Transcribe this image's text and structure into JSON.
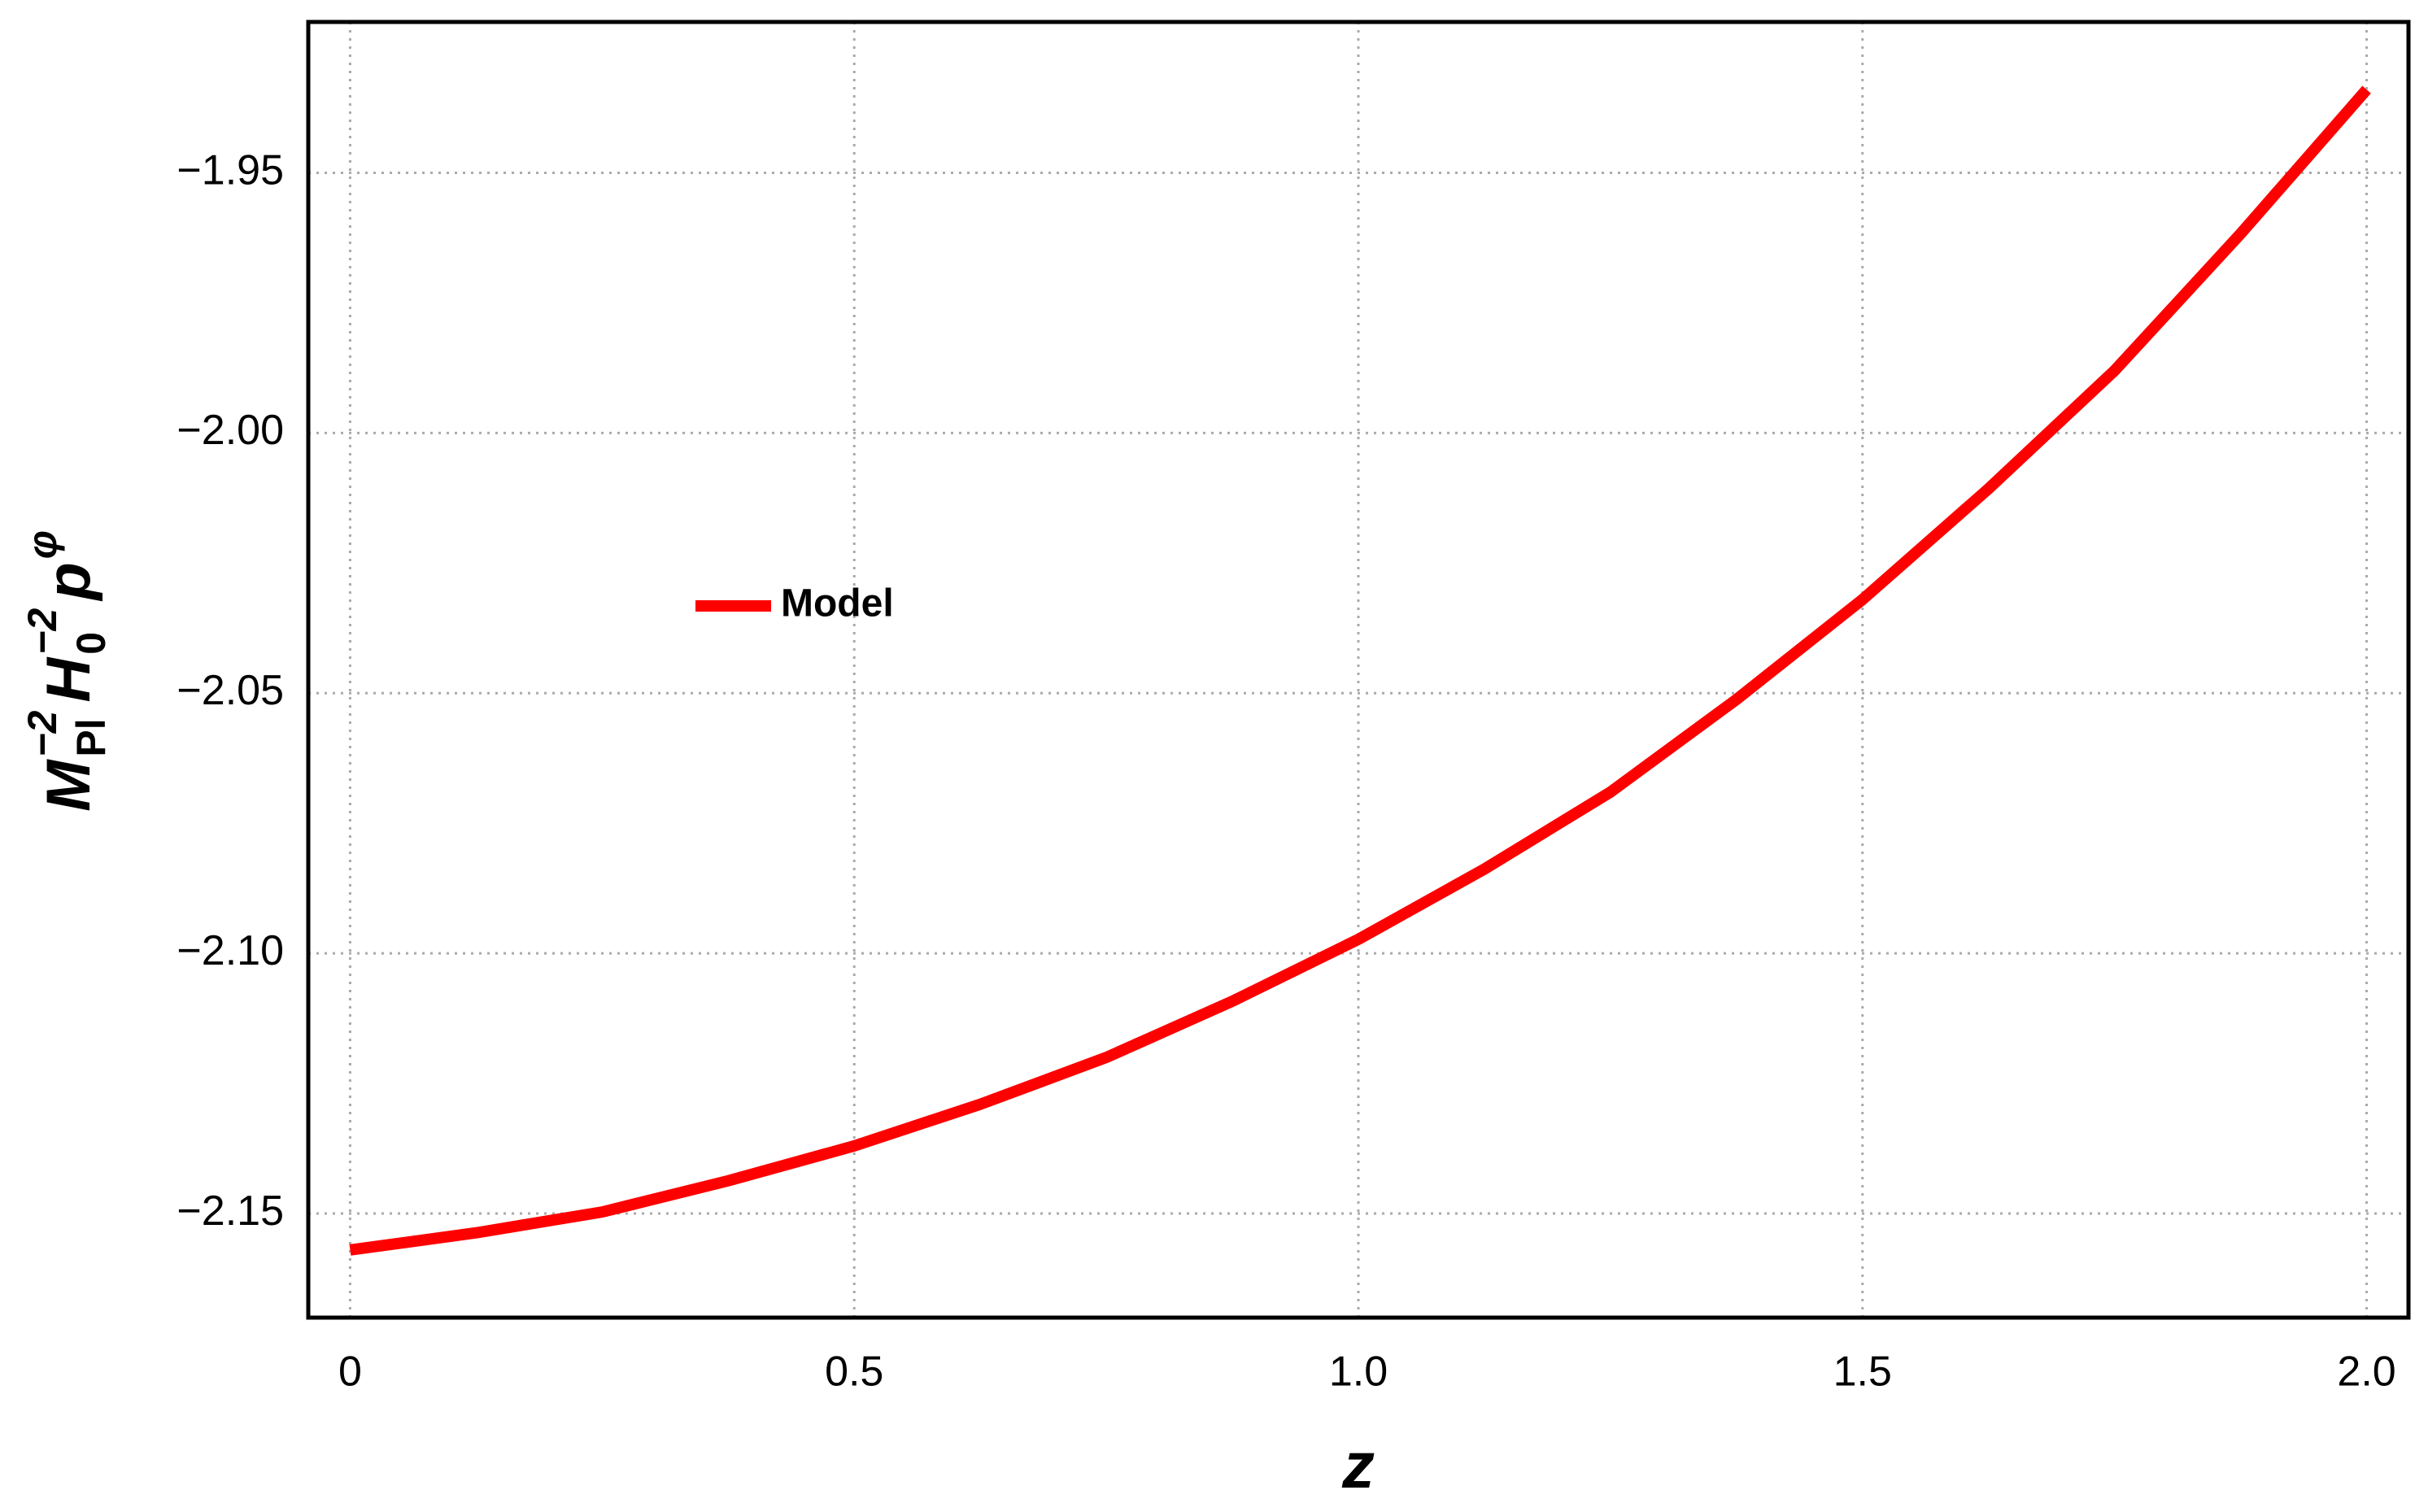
{
  "chart_data": {
    "type": "line",
    "xlabel": "z",
    "ylabel": [
      {
        "base": "M",
        "sup": "−2",
        "sub": "Pl"
      },
      {
        "base": "H",
        "sup": "−2",
        "sub": "0"
      },
      {
        "base": "p",
        "sup": "φ"
      }
    ],
    "x": [
      0,
      0.125,
      0.25,
      0.375,
      0.5,
      0.625,
      0.75,
      0.875,
      1,
      1.125,
      1.25,
      1.375,
      1.5,
      1.625,
      1.75,
      1.875,
      2
    ],
    "series": [
      {
        "name": "Model",
        "color": "#ff0000",
        "values": [
          -2.157,
          -2.1537,
          -2.1497,
          -2.1437,
          -2.137,
          -2.129,
          -2.12,
          -2.1092,
          -2.0973,
          -2.0838,
          -2.069,
          -2.0512,
          -2.032,
          -2.0107,
          -1.988,
          -1.9617,
          -1.934
        ]
      }
    ],
    "xlim": [
      -0.0415,
      2.0415
    ],
    "ylim": [
      -2.17,
      -1.921
    ],
    "xticks": [
      0,
      0.5,
      {
        "value": 1,
        "label": "1.0"
      },
      1.5,
      {
        "value": 2,
        "label": "2.0"
      }
    ],
    "yticks": [
      {
        "value": -1.95,
        "label": "−1.95"
      },
      {
        "value": -2,
        "label": "−2.00"
      },
      {
        "value": -2.05,
        "label": "−2.05"
      },
      {
        "value": -2.1,
        "label": "−2.10"
      },
      {
        "value": -2.15,
        "label": "−2.15"
      }
    ],
    "grid": true
  }
}
